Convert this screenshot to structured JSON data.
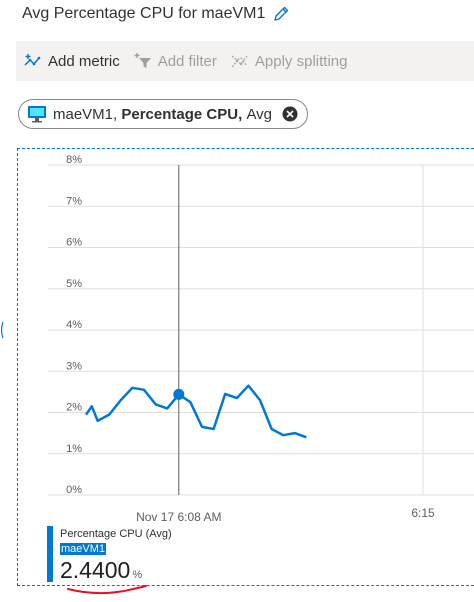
{
  "header": {
    "title": "Avg Percentage CPU for maeVM1",
    "edit_icon": "pencil-icon"
  },
  "toolbar": {
    "add_metric": "Add metric",
    "add_filter": "Add filter",
    "apply_splitting": "Apply splitting"
  },
  "metric_pill": {
    "resource": "maeVM1,",
    "metric": "Percentage CPU,",
    "aggregation": "Avg",
    "icon": "virtual-machine-icon"
  },
  "chart_data": {
    "type": "line",
    "x_tick_labels": [
      "Nov 17 6:08 AM",
      "6:15"
    ],
    "y_tick_labels": [
      "0%",
      "1%",
      "2%",
      "3%",
      "4%",
      "5%",
      "6%",
      "7%",
      "8%"
    ],
    "ylim": [
      0,
      8
    ],
    "grid": true,
    "x": [
      0,
      0.5,
      1,
      2,
      3,
      4,
      5,
      6,
      7,
      8,
      9,
      10,
      11,
      12,
      13,
      14,
      15,
      16,
      17,
      18,
      19
    ],
    "series": [
      {
        "values": [
          1.95,
          2.15,
          1.8,
          1.95,
          2.3,
          2.6,
          2.55,
          2.2,
          2.1,
          2.44,
          2.25,
          1.65,
          1.6,
          2.45,
          2.35,
          2.65,
          2.3,
          1.6,
          1.45,
          1.5,
          1.4
        ]
      }
    ],
    "cursor_index": 9,
    "cursor_label": "Nov 17 6:08 AM"
  },
  "legend": {
    "metric_name": "Percentage CPU (Avg)",
    "resource": "maeVM1",
    "value": "2.4400",
    "unit": "%"
  },
  "colors": {
    "accent": "#0078d4",
    "annotation": "#e81123"
  }
}
